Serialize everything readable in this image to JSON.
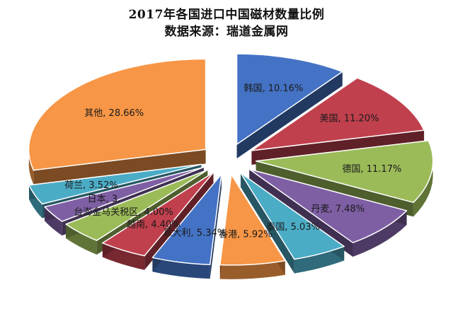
{
  "chart_data": {
    "type": "pie",
    "title": "2017年各国进口中国磁材数量比例",
    "subtitle": "数据来源：瑞道金属网",
    "legend": "none",
    "slices": [
      {
        "label": "韩国",
        "value": 10.16,
        "value_text": "10.16%",
        "color": "#4472C4"
      },
      {
        "label": "美国",
        "value": 11.2,
        "value_text": "11.20%",
        "color": "#C0404D"
      },
      {
        "label": "德国",
        "value": 11.17,
        "value_text": "11.17%",
        "color": "#9BBB59"
      },
      {
        "label": "丹麦",
        "value": 7.48,
        "value_text": "7.48%",
        "color": "#7E5FA3"
      },
      {
        "label": "泰国",
        "value": 5.03,
        "value_text": "5.03%",
        "color": "#4BACC6"
      },
      {
        "label": "香港",
        "value": 5.92,
        "value_text": "5.92%",
        "color": "#F79646"
      },
      {
        "label": "意大利",
        "value": 5.34,
        "value_text": "5.34%",
        "color": "#4472C4"
      },
      {
        "label": "越南",
        "value": 4.4,
        "value_text": "4.40%",
        "color": "#C0404D"
      },
      {
        "label": "台澎金马关税区",
        "value": 4.0,
        "value_text": "4.00%",
        "color": "#9BBB59"
      },
      {
        "label": "日本",
        "value": 3.0,
        "value_text": "3.",
        "color": "#7E5FA3"
      },
      {
        "label": "荷兰",
        "value": 3.52,
        "value_text": "3.52%",
        "color": "#4BACC6"
      },
      {
        "label": "其他",
        "value": 28.66,
        "value_text": "28.66%",
        "color": "#F79646"
      }
    ]
  }
}
